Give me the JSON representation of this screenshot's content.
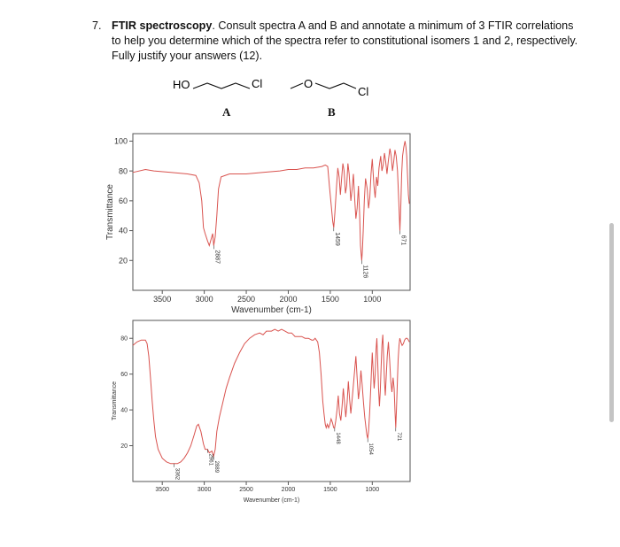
{
  "question": {
    "number": "7.",
    "title": "FTIR spectroscopy",
    "text": ". Consult spectra A and B and annotate a minimum of 3 FTIR correlations to help you determine which of the spectra refer to constitutional isomers 1 and 2, respectively. Fully justify your answers (12)."
  },
  "molecules": [
    {
      "label": "A",
      "atoms": [
        "HO",
        "Cl"
      ]
    },
    {
      "label": "B",
      "atoms": [
        "O",
        "Cl"
      ]
    }
  ],
  "colors": {
    "spectrum": "#d9534f",
    "frame": "#555555"
  },
  "chart_data": [
    {
      "type": "line",
      "title": "",
      "xlabel": "Wavenumber (cm-1)",
      "ylabel": "Transmittance",
      "xlim": [
        3850,
        550
      ],
      "ylim": [
        0,
        105
      ],
      "x_reversed": true,
      "xticks": [
        3500,
        3000,
        2500,
        2000,
        1500,
        1000
      ],
      "yticks": [
        20,
        40,
        60,
        80,
        100
      ],
      "annotations": [
        {
          "x": 2887,
          "y": 30,
          "text": "2887"
        },
        {
          "x": 1459,
          "y": 42,
          "text": "1459"
        },
        {
          "x": 1126,
          "y": 20,
          "text": "1126"
        },
        {
          "x": 671,
          "y": 40,
          "text": "671"
        }
      ],
      "series": [
        {
          "points": [
            [
              3850,
              79
            ],
            [
              3700,
              81
            ],
            [
              3600,
              80
            ],
            [
              3400,
              79
            ],
            [
              3200,
              78
            ],
            [
              3100,
              77
            ],
            [
              3060,
              72
            ],
            [
              3030,
              60
            ],
            [
              3010,
              42
            ],
            [
              2990,
              38
            ],
            [
              2960,
              33
            ],
            [
              2940,
              30
            ],
            [
              2920,
              34
            ],
            [
              2900,
              38
            ],
            [
              2887,
              30
            ],
            [
              2870,
              36
            ],
            [
              2850,
              50
            ],
            [
              2830,
              68
            ],
            [
              2800,
              76
            ],
            [
              2700,
              78
            ],
            [
              2500,
              78
            ],
            [
              2300,
              79
            ],
            [
              2100,
              80
            ],
            [
              2000,
              81
            ],
            [
              1900,
              81
            ],
            [
              1800,
              82
            ],
            [
              1700,
              82
            ],
            [
              1600,
              83
            ],
            [
              1560,
              84
            ],
            [
              1530,
              83
            ],
            [
              1510,
              70
            ],
            [
              1490,
              58
            ],
            [
              1470,
              46
            ],
            [
              1459,
              42
            ],
            [
              1445,
              52
            ],
            [
              1425,
              70
            ],
            [
              1410,
              82
            ],
            [
              1395,
              76
            ],
            [
              1380,
              64
            ],
            [
              1365,
              75
            ],
            [
              1350,
              85
            ],
            [
              1335,
              80
            ],
            [
              1320,
              65
            ],
            [
              1305,
              70
            ],
            [
              1290,
              85
            ],
            [
              1275,
              78
            ],
            [
              1255,
              60
            ],
            [
              1240,
              68
            ],
            [
              1225,
              78
            ],
            [
              1210,
              62
            ],
            [
              1195,
              48
            ],
            [
              1180,
              55
            ],
            [
              1165,
              70
            ],
            [
              1150,
              50
            ],
            [
              1140,
              30
            ],
            [
              1132,
              24
            ],
            [
              1126,
              20
            ],
            [
              1118,
              26
            ],
            [
              1108,
              40
            ],
            [
              1095,
              60
            ],
            [
              1080,
              75
            ],
            [
              1060,
              68
            ],
            [
              1045,
              55
            ],
            [
              1030,
              62
            ],
            [
              1015,
              78
            ],
            [
              1000,
              88
            ],
            [
              980,
              70
            ],
            [
              965,
              62
            ],
            [
              950,
              76
            ],
            [
              935,
              70
            ],
            [
              920,
              82
            ],
            [
              900,
              90
            ],
            [
              885,
              80
            ],
            [
              870,
              84
            ],
            [
              855,
              92
            ],
            [
              840,
              86
            ],
            [
              825,
              78
            ],
            [
              810,
              86
            ],
            [
              790,
              95
            ],
            [
              775,
              90
            ],
            [
              760,
              80
            ],
            [
              745,
              86
            ],
            [
              730,
              94
            ],
            [
              715,
              90
            ],
            [
              700,
              80
            ],
            [
              685,
              60
            ],
            [
              671,
              40
            ],
            [
              660,
              58
            ],
            [
              650,
              78
            ],
            [
              640,
              90
            ],
            [
              625,
              96
            ],
            [
              610,
              100
            ],
            [
              600,
              96
            ],
            [
              590,
              90
            ],
            [
              580,
              76
            ],
            [
              570,
              64
            ],
            [
              560,
              58
            ]
          ]
        }
      ]
    },
    {
      "type": "line",
      "title": "",
      "xlabel": "Wavenumber (cm-1)",
      "ylabel": "Transmittance",
      "xlim": [
        3850,
        550
      ],
      "ylim": [
        0,
        90
      ],
      "x_reversed": true,
      "xticks": [
        3500,
        3000,
        2500,
        2000,
        1500,
        1000
      ],
      "yticks": [
        20,
        40,
        60,
        80
      ],
      "annotations": [
        {
          "x": 3362,
          "y": 10,
          "text": "3362"
        },
        {
          "x": 2961,
          "y": 18,
          "text": "2961"
        },
        {
          "x": 2889,
          "y": 14,
          "text": "2889"
        },
        {
          "x": 1448,
          "y": 30,
          "text": "1448"
        },
        {
          "x": 1054,
          "y": 24,
          "text": "1054"
        },
        {
          "x": 721,
          "y": 30,
          "text": "721"
        }
      ],
      "series": [
        {
          "points": [
            [
              3850,
              76
            ],
            [
              3800,
              78
            ],
            [
              3750,
              79
            ],
            [
              3700,
              79
            ],
            [
              3680,
              77
            ],
            [
              3660,
              70
            ],
            [
              3640,
              58
            ],
            [
              3620,
              45
            ],
            [
              3600,
              34
            ],
            [
              3580,
              25
            ],
            [
              3550,
              18
            ],
            [
              3500,
              13
            ],
            [
              3450,
              11
            ],
            [
              3400,
              10
            ],
            [
              3362,
              10
            ],
            [
              3320,
              10
            ],
            [
              3280,
              11
            ],
            [
              3240,
              13
            ],
            [
              3200,
              16
            ],
            [
              3160,
              20
            ],
            [
              3120,
              26
            ],
            [
              3090,
              31
            ],
            [
              3070,
              32
            ],
            [
              3040,
              28
            ],
            [
              3010,
              21
            ],
            [
              2990,
              18
            ],
            [
              2961,
              18
            ],
            [
              2940,
              16
            ],
            [
              2910,
              17
            ],
            [
              2889,
              14
            ],
            [
              2870,
              18
            ],
            [
              2850,
              28
            ],
            [
              2820,
              36
            ],
            [
              2780,
              44
            ],
            [
              2740,
              52
            ],
            [
              2700,
              58
            ],
            [
              2640,
              66
            ],
            [
              2580,
              72
            ],
            [
              2520,
              77
            ],
            [
              2460,
              80
            ],
            [
              2400,
              82
            ],
            [
              2340,
              83
            ],
            [
              2300,
              82
            ],
            [
              2260,
              84
            ],
            [
              2200,
              84
            ],
            [
              2160,
              85
            ],
            [
              2120,
              84
            ],
            [
              2080,
              85
            ],
            [
              2040,
              84
            ],
            [
              2000,
              83
            ],
            [
              1960,
              83
            ],
            [
              1920,
              81
            ],
            [
              1880,
              81
            ],
            [
              1840,
              81
            ],
            [
              1800,
              80
            ],
            [
              1760,
              80
            ],
            [
              1720,
              79
            ],
            [
              1700,
              79
            ],
            [
              1680,
              80
            ],
            [
              1650,
              78
            ],
            [
              1630,
              72
            ],
            [
              1610,
              60
            ],
            [
              1590,
              45
            ],
            [
              1575,
              38
            ],
            [
              1560,
              32
            ],
            [
              1548,
              30
            ],
            [
              1535,
              32
            ],
            [
              1520,
              30
            ],
            [
              1505,
              32
            ],
            [
              1490,
              35
            ],
            [
              1475,
              33
            ],
            [
              1460,
              30
            ],
            [
              1448,
              30
            ],
            [
              1435,
              34
            ],
            [
              1420,
              40
            ],
            [
              1405,
              48
            ],
            [
              1390,
              38
            ],
            [
              1375,
              34
            ],
            [
              1360,
              42
            ],
            [
              1345,
              52
            ],
            [
              1330,
              44
            ],
            [
              1315,
              36
            ],
            [
              1300,
              44
            ],
            [
              1285,
              56
            ],
            [
              1270,
              46
            ],
            [
              1255,
              38
            ],
            [
              1240,
              46
            ],
            [
              1225,
              54
            ],
            [
              1210,
              62
            ],
            [
              1195,
              70
            ],
            [
              1180,
              58
            ],
            [
              1165,
              46
            ],
            [
              1150,
              52
            ],
            [
              1135,
              62
            ],
            [
              1120,
              54
            ],
            [
              1105,
              44
            ],
            [
              1090,
              36
            ],
            [
              1075,
              30
            ],
            [
              1064,
              26
            ],
            [
              1054,
              24
            ],
            [
              1044,
              28
            ],
            [
              1032,
              38
            ],
            [
              1020,
              50
            ],
            [
              1010,
              62
            ],
            [
              1000,
              72
            ],
            [
              990,
              62
            ],
            [
              978,
              52
            ],
            [
              965,
              60
            ],
            [
              955,
              74
            ],
            [
              945,
              80
            ],
            [
              935,
              66
            ],
            [
              925,
              52
            ],
            [
              915,
              42
            ],
            [
              905,
              50
            ],
            [
              895,
              64
            ],
            [
              885,
              76
            ],
            [
              875,
              82
            ],
            [
              865,
              70
            ],
            [
              855,
              56
            ],
            [
              845,
              48
            ],
            [
              835,
              58
            ],
            [
              822,
              70
            ],
            [
              808,
              78
            ],
            [
              794,
              68
            ],
            [
              780,
              56
            ],
            [
              766,
              50
            ],
            [
              752,
              58
            ],
            [
              740,
              52
            ],
            [
              730,
              40
            ],
            [
              721,
              30
            ],
            [
              712,
              40
            ],
            [
              702,
              55
            ],
            [
              692,
              68
            ],
            [
              682,
              76
            ],
            [
              672,
              80
            ],
            [
              660,
              78
            ],
            [
              645,
              76
            ],
            [
              630,
              77
            ],
            [
              615,
              79
            ],
            [
              600,
              80
            ],
            [
              585,
              80
            ],
            [
              570,
              79
            ],
            [
              560,
              78
            ]
          ]
        }
      ]
    }
  ]
}
